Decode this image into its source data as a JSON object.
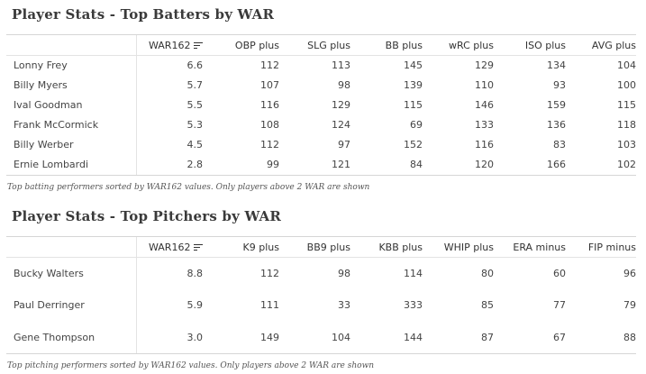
{
  "batters": {
    "title": "Player Stats - Top Batters by WAR",
    "columns": [
      "",
      "WAR162",
      "OBP plus",
      "SLG plus",
      "BB plus",
      "wRC plus",
      "ISO plus",
      "AVG plus"
    ],
    "sort_icon": "sort-descending-icon",
    "rows": [
      [
        "Lonny Frey",
        "6.6",
        "112",
        "113",
        "145",
        "129",
        "134",
        "104"
      ],
      [
        "Billy Myers",
        "5.7",
        "107",
        "98",
        "139",
        "110",
        "93",
        "100"
      ],
      [
        "Ival Goodman",
        "5.5",
        "116",
        "129",
        "115",
        "146",
        "159",
        "115"
      ],
      [
        "Frank McCormick",
        "5.3",
        "108",
        "124",
        "69",
        "133",
        "136",
        "118"
      ],
      [
        "Billy Werber",
        "4.5",
        "112",
        "97",
        "152",
        "116",
        "83",
        "103"
      ],
      [
        "Ernie Lombardi",
        "2.8",
        "99",
        "121",
        "84",
        "120",
        "166",
        "102"
      ]
    ],
    "footnote": "Top batting performers sorted by WAR162 values. Only players above 2 WAR are shown"
  },
  "pitchers": {
    "title": "Player Stats - Top Pitchers by WAR",
    "columns": [
      "",
      "WAR162",
      "K9 plus",
      "BB9 plus",
      "KBB plus",
      "WHIP plus",
      "ERA minus",
      "FIP minus"
    ],
    "sort_icon": "sort-descending-icon",
    "rows": [
      [
        "Bucky Walters",
        "8.8",
        "112",
        "98",
        "114",
        "80",
        "60",
        "96"
      ],
      [
        "Paul Derringer",
        "5.9",
        "111",
        "33",
        "333",
        "85",
        "77",
        "79"
      ],
      [
        "Gene Thompson",
        "3.0",
        "149",
        "104",
        "144",
        "87",
        "67",
        "88"
      ]
    ],
    "footnote": "Top pitching performers sorted by WAR162 values. Only players above 2 WAR are shown"
  }
}
